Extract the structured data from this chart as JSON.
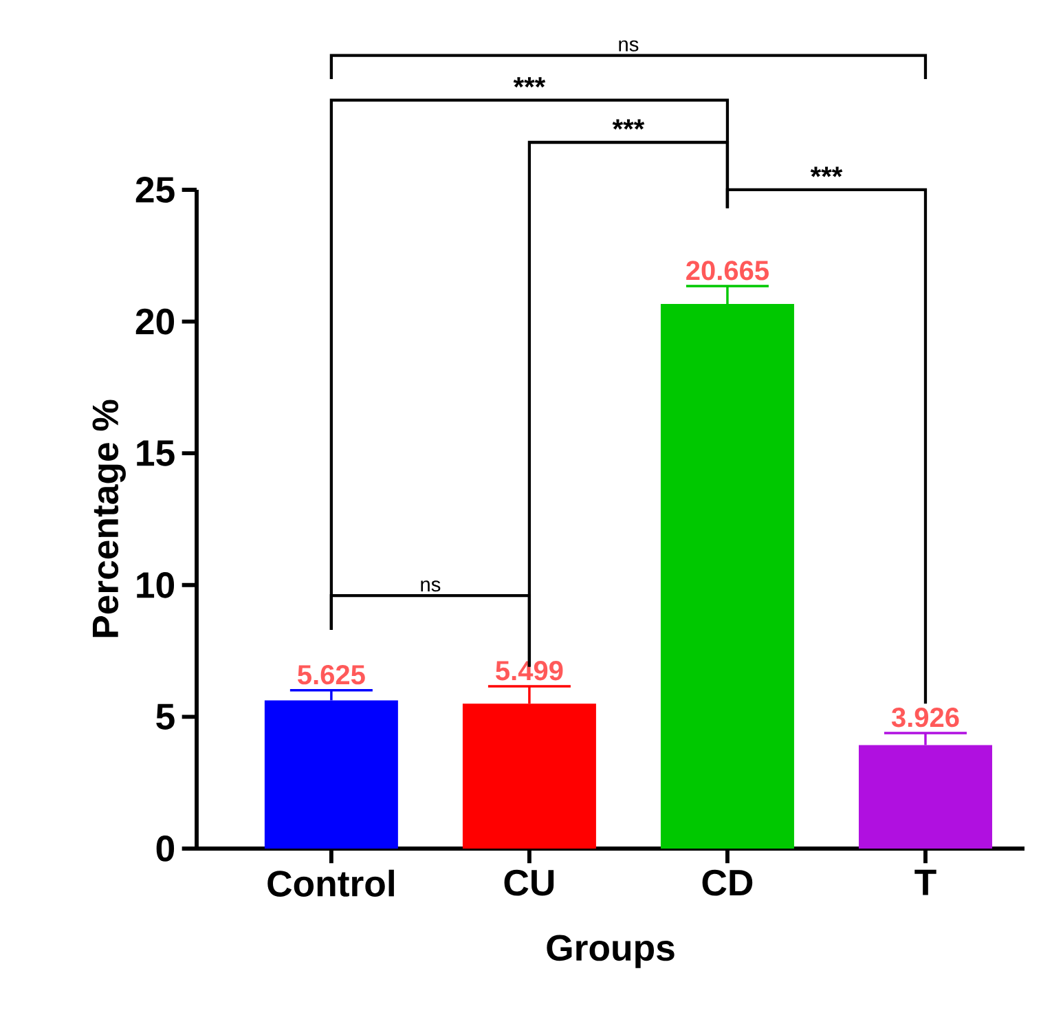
{
  "chart_data": {
    "type": "bar",
    "xlabel": "Groups",
    "ylabel": "Percentage %",
    "categories": [
      "Control",
      "CU",
      "CD",
      "T"
    ],
    "values": [
      5.625,
      5.499,
      20.665,
      3.926
    ],
    "colors": [
      "#0000ff",
      "#ff0000",
      "#00c800",
      "#b010e0"
    ],
    "errors": [
      0.38,
      0.66,
      0.68,
      0.46
    ],
    "value_labels": [
      "5.625",
      "5.499",
      "20.665",
      "3.926"
    ],
    "ylim": [
      0,
      25
    ],
    "yticks": [
      0,
      5,
      10,
      15,
      20,
      25
    ],
    "annotations": [
      "ns",
      "***",
      "***",
      "***",
      "ns"
    ]
  }
}
